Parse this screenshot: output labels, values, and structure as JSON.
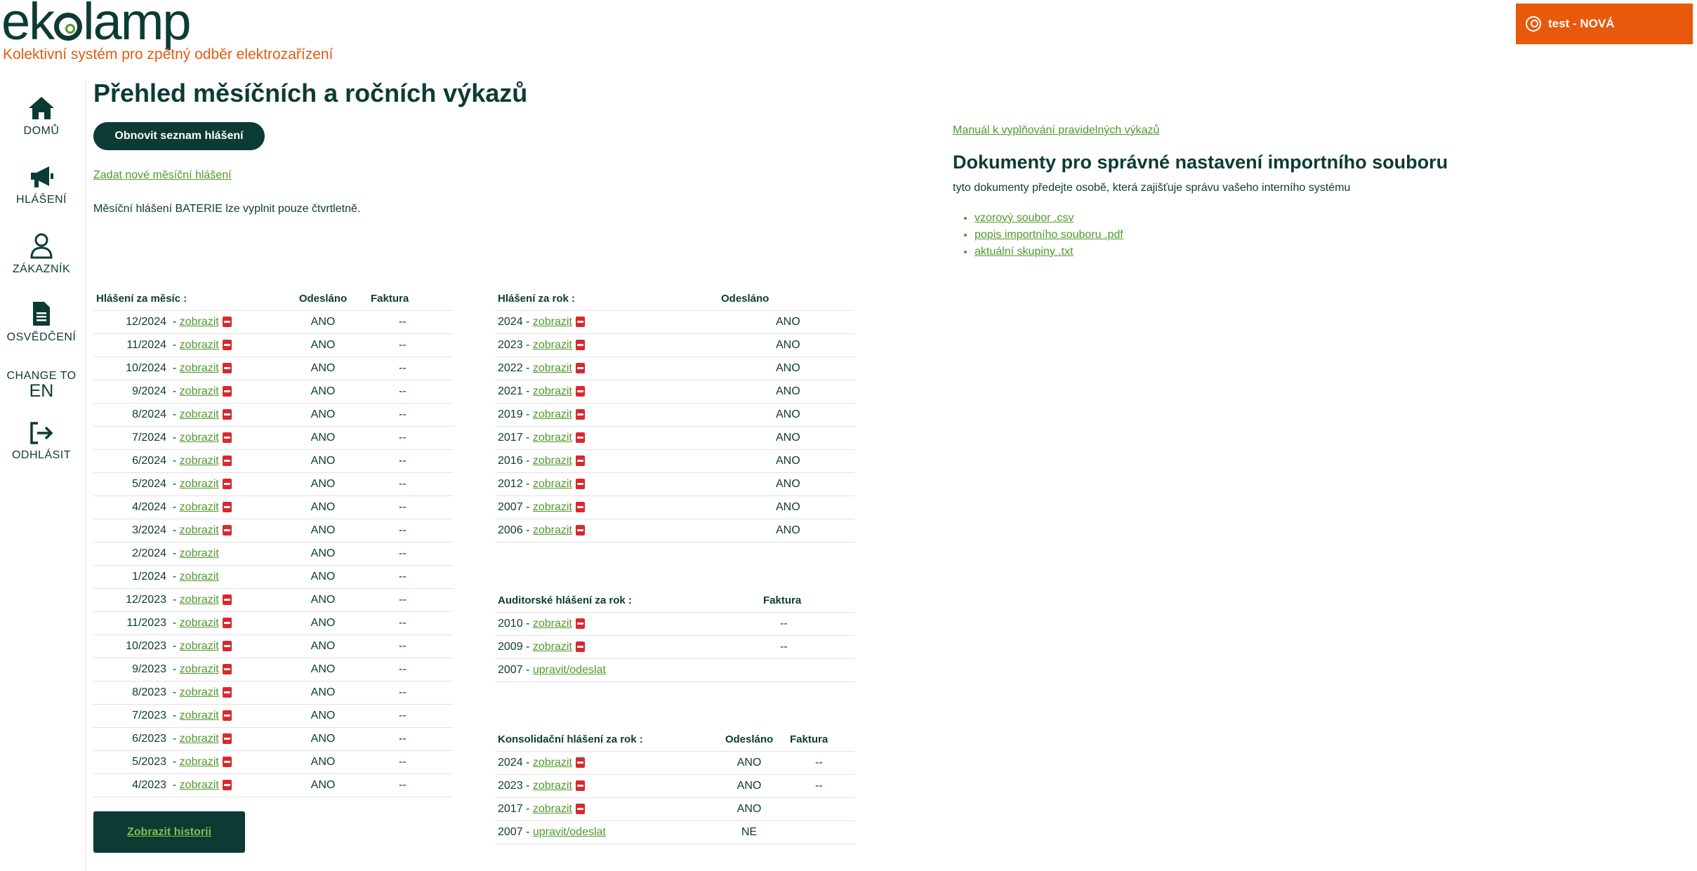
{
  "brand": {
    "logo_pre": "ek",
    "logo_post": "lamp",
    "tagline": "Kolektivní systém pro zpětný odběr elektrozařízení"
  },
  "user": {
    "label": "test - NOVÁ"
  },
  "nav": {
    "home": "DOMŮ",
    "reports": "HLÁŠENÍ",
    "customer": "ZÁKAZNÍK",
    "certificate": "OSVĚDČENÍ",
    "change_to": "CHANGE TO",
    "lang": "EN",
    "logout": "ODHLÁSIT"
  },
  "page": {
    "title": "Přehled měsíčních a ročních výkazů",
    "refresh_button": "Obnovit seznam hlášení",
    "new_monthly_link": "Zadat nové měsíční hlášení",
    "battery_note": "Měsíční hlášení BATERIE lze vyplnit pouze čtvrtletně.",
    "history_button": "Zobrazit historii"
  },
  "monthly": {
    "headers": [
      "Hlášení za měsíc :",
      "Odesláno",
      "Faktura"
    ],
    "link_text": "zobrazit",
    "rows": [
      {
        "period": "12/2024",
        "sent": "ANO",
        "invoice": "--",
        "pdf": true
      },
      {
        "period": "11/2024",
        "sent": "ANO",
        "invoice": "--",
        "pdf": true
      },
      {
        "period": "10/2024",
        "sent": "ANO",
        "invoice": "--",
        "pdf": true
      },
      {
        "period": "9/2024",
        "sent": "ANO",
        "invoice": "--",
        "pdf": true
      },
      {
        "period": "8/2024",
        "sent": "ANO",
        "invoice": "--",
        "pdf": true
      },
      {
        "period": "7/2024",
        "sent": "ANO",
        "invoice": "--",
        "pdf": true
      },
      {
        "period": "6/2024",
        "sent": "ANO",
        "invoice": "--",
        "pdf": true
      },
      {
        "period": "5/2024",
        "sent": "ANO",
        "invoice": "--",
        "pdf": true
      },
      {
        "period": "4/2024",
        "sent": "ANO",
        "invoice": "--",
        "pdf": true
      },
      {
        "period": "3/2024",
        "sent": "ANO",
        "invoice": "--",
        "pdf": true
      },
      {
        "period": "2/2024",
        "sent": "ANO",
        "invoice": "--",
        "pdf": false
      },
      {
        "period": "1/2024",
        "sent": "ANO",
        "invoice": "--",
        "pdf": false
      },
      {
        "period": "12/2023",
        "sent": "ANO",
        "invoice": "--",
        "pdf": true
      },
      {
        "period": "11/2023",
        "sent": "ANO",
        "invoice": "--",
        "pdf": true
      },
      {
        "period": "10/2023",
        "sent": "ANO",
        "invoice": "--",
        "pdf": true
      },
      {
        "period": "9/2023",
        "sent": "ANO",
        "invoice": "--",
        "pdf": true
      },
      {
        "period": "8/2023",
        "sent": "ANO",
        "invoice": "--",
        "pdf": true
      },
      {
        "period": "7/2023",
        "sent": "ANO",
        "invoice": "--",
        "pdf": true
      },
      {
        "period": "6/2023",
        "sent": "ANO",
        "invoice": "--",
        "pdf": true
      },
      {
        "period": "5/2023",
        "sent": "ANO",
        "invoice": "--",
        "pdf": true
      },
      {
        "period": "4/2023",
        "sent": "ANO",
        "invoice": "--",
        "pdf": true
      }
    ]
  },
  "yearly": {
    "headers": [
      "Hlášení za rok :",
      "Odesláno"
    ],
    "link_text": "zobrazit",
    "rows": [
      {
        "year": "2024",
        "sent": "ANO"
      },
      {
        "year": "2023",
        "sent": "ANO"
      },
      {
        "year": "2022",
        "sent": "ANO"
      },
      {
        "year": "2021",
        "sent": "ANO"
      },
      {
        "year": "2019",
        "sent": "ANO"
      },
      {
        "year": "2017",
        "sent": "ANO"
      },
      {
        "year": "2016",
        "sent": "ANO"
      },
      {
        "year": "2012",
        "sent": "ANO"
      },
      {
        "year": "2007",
        "sent": "ANO"
      },
      {
        "year": "2006",
        "sent": "ANO"
      }
    ]
  },
  "audit": {
    "headers": [
      "Auditorské hlášení za rok :",
      "Faktura"
    ],
    "rows": [
      {
        "year": "2010",
        "link": "zobrazit",
        "pdf": true,
        "invoice": "--"
      },
      {
        "year": "2009",
        "link": "zobrazit",
        "pdf": true,
        "invoice": "--"
      },
      {
        "year": "2007",
        "link": "upravit/odeslat",
        "pdf": false,
        "invoice": ""
      }
    ]
  },
  "consolidated": {
    "headers": [
      "Konsolidační hlášení za rok :",
      "Odesláno",
      "Faktura"
    ],
    "rows": [
      {
        "year": "2024",
        "link": "zobrazit",
        "pdf": true,
        "sent": "ANO",
        "invoice": "--"
      },
      {
        "year": "2023",
        "link": "zobrazit",
        "pdf": true,
        "sent": "ANO",
        "invoice": "--"
      },
      {
        "year": "2017",
        "link": "zobrazit",
        "pdf": true,
        "sent": "ANO",
        "invoice": ""
      },
      {
        "year": "2007",
        "link": "upravit/odeslat",
        "pdf": false,
        "sent": "NE",
        "invoice": ""
      }
    ]
  },
  "docs": {
    "manual_link": "Manuál k vyplňování pravidelných výkazů",
    "title": "Dokumenty pro správné nastavení importního souboru",
    "subtitle": "tyto dokumenty předejte osobě, která zajišťuje správu vašeho interního systému",
    "files": [
      "vzorový soubor .csv",
      "popis importního souboru .pdf",
      "aktuální skupiny .txt"
    ]
  },
  "colors": {
    "primary": "#0c3b33",
    "accent": "#e8590c",
    "link": "#4f9a2a",
    "pdf": "#d9282f"
  }
}
